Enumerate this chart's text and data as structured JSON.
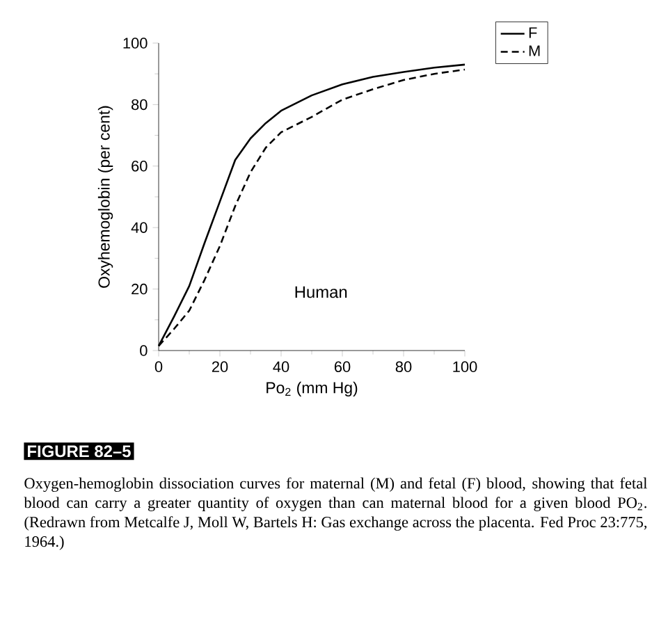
{
  "chart_data": {
    "type": "line",
    "xlabel": "Po$_{2}$ (mm Hg)",
    "ylabel": "Oxyhemoglobin (per cent)",
    "x": [
      0,
      5,
      10,
      15,
      20,
      25,
      30,
      35,
      40,
      50,
      60,
      70,
      80,
      90,
      100
    ],
    "series": [
      {
        "name": "F",
        "color": "#000000",
        "line_style": "solid",
        "values": [
          1.5,
          11,
          21,
          35,
          48.5,
          62,
          69,
          74,
          78,
          83,
          86.6,
          89,
          90.6,
          92,
          93
        ]
      },
      {
        "name": "M",
        "color": "#000000",
        "line_style": "dashed",
        "values": [
          1.5,
          7,
          13,
          23,
          34,
          47,
          58,
          66,
          71,
          76,
          81.6,
          85,
          88,
          90,
          91.4
        ]
      }
    ],
    "xlim": [
      0,
      100
    ],
    "ylim": [
      0,
      100
    ],
    "xticks": [
      0,
      20,
      40,
      60,
      80,
      100
    ],
    "yticks": [
      0,
      20,
      40,
      60,
      80,
      100
    ],
    "legend": "top right",
    "marker": "none",
    "annotations": [
      "Human",
      "FIGURE 82–5",
      "Oxygen-hemoglobin dissociation curves for maternal (M) and fetal (F) blood, showing that fetal blood can carry a greater quantity of oxygen than can maternal blood for a given blood PO$_{2}$. (Redrawn from Metcalfe J, Moll W, Bartels H: Gas exchange across the placenta. Fed Proc 23:775, 1964.)"
    ]
  }
}
